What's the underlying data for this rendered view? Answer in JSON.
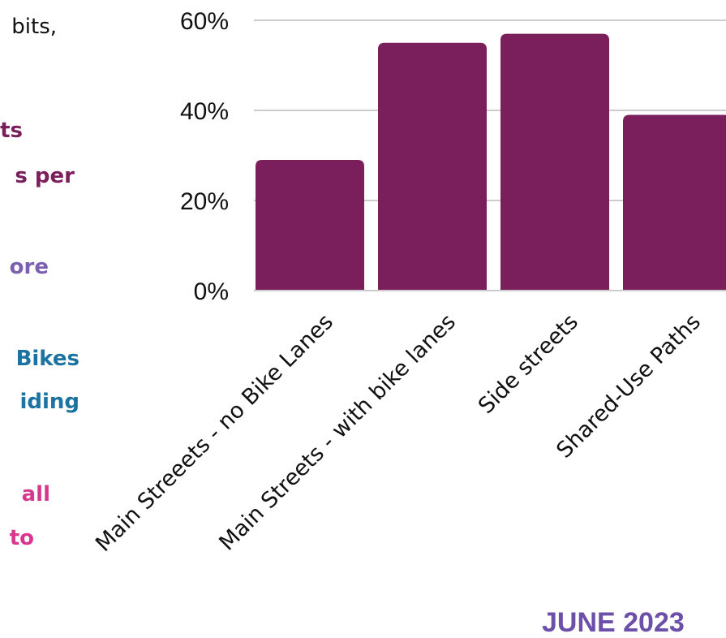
{
  "colors": {
    "bar": "#7a1f5c",
    "grid": "#cccccc",
    "text_dark": "#111111",
    "maroon": "#7a1f5c",
    "purple": "#7b5fb0",
    "teal": "#1c72a0",
    "pink": "#d7388e",
    "date": "#6b4fa8"
  },
  "left_text": [
    {
      "text": "bits,",
      "color": "#111111",
      "bold": false
    },
    {
      "text": "ts",
      "color": "#7a1f5c",
      "bold": true
    },
    {
      "text": "s per",
      "color": "#7a1f5c",
      "bold": true
    },
    {
      "text": "ore",
      "color": "#7b5fb0",
      "bold": true
    },
    {
      "text": "Bikes",
      "color": "#1c72a0",
      "bold": true
    },
    {
      "text": "iding",
      "color": "#1c72a0",
      "bold": true
    },
    {
      "text": "all",
      "color": "#d7388e",
      "bold": true
    },
    {
      "text": "to",
      "color": "#d7388e",
      "bold": true
    }
  ],
  "chart_data": {
    "type": "bar",
    "title": "",
    "xlabel": "",
    "ylabel": "",
    "categories": [
      "Main Streeets - no Bike Lanes",
      "Main Streets - with bike lanes",
      "Side streets",
      "Shared-Use Paths"
    ],
    "values": [
      29,
      55,
      57,
      39
    ],
    "ylim": [
      0,
      60
    ],
    "yticks": [
      0,
      20,
      40,
      60
    ],
    "ytick_labels": [
      "0%",
      "20%",
      "40%",
      "60%"
    ],
    "grid": true,
    "legend": "none"
  },
  "footer": {
    "date": "JUNE 2023"
  }
}
